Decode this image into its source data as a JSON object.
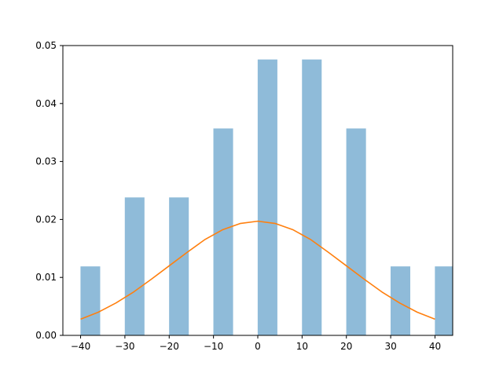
{
  "chart_data": {
    "type": "bar",
    "xlim": [
      -44,
      44
    ],
    "ylim": [
      0,
      0.05
    ],
    "xticks": [
      -40,
      -30,
      -20,
      -10,
      0,
      10,
      20,
      30,
      40
    ],
    "xtick_labels": [
      "−40",
      "−30",
      "−20",
      "−10",
      "0",
      "10",
      "20",
      "30",
      "40"
    ],
    "yticks": [
      0,
      0.01,
      0.02,
      0.03,
      0.04,
      0.05
    ],
    "ytick_labels": [
      "0.00",
      "0.01",
      "0.02",
      "0.03",
      "0.04",
      "0.05"
    ],
    "bar_color": "#8fbbd9",
    "bar_width": 4.444,
    "bars": [
      {
        "x": -37.8,
        "value": 0.0119
      },
      {
        "x": -27.8,
        "value": 0.0238
      },
      {
        "x": -17.8,
        "value": 0.0238
      },
      {
        "x": -7.8,
        "value": 0.0357
      },
      {
        "x": 2.2,
        "value": 0.0476
      },
      {
        "x": 12.2,
        "value": 0.0476
      },
      {
        "x": 22.2,
        "value": 0.0357
      },
      {
        "x": 32.2,
        "value": 0.0119
      },
      {
        "x": 42.2,
        "value": 0.0119
      }
    ],
    "curve_color": "#ff7f0e",
    "curve": {
      "x": [
        -40,
        -36,
        -32,
        -28,
        -24,
        -20,
        -16,
        -12,
        -8,
        -4,
        0,
        4,
        8,
        12,
        16,
        20,
        24,
        28,
        32,
        36,
        40
      ],
      "y": [
        0.0028,
        0.004,
        0.0056,
        0.0075,
        0.0097,
        0.012,
        0.0143,
        0.0165,
        0.0182,
        0.0193,
        0.0197,
        0.0193,
        0.0182,
        0.0165,
        0.0143,
        0.012,
        0.0097,
        0.0075,
        0.0056,
        0.004,
        0.0028
      ]
    },
    "grid": false
  }
}
